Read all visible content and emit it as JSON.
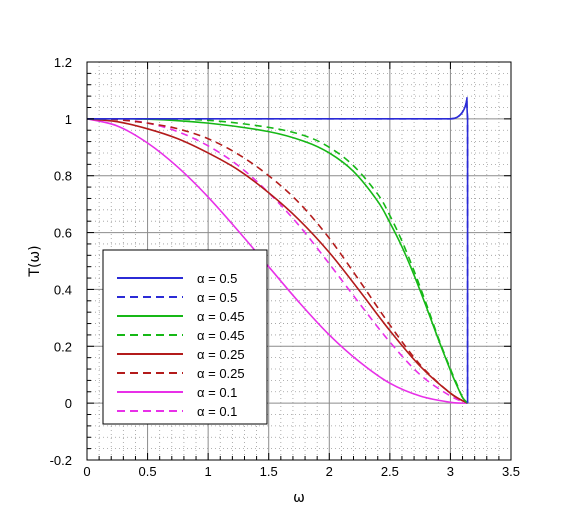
{
  "chart_data": {
    "type": "line",
    "title": "",
    "xlabel": "ω",
    "ylabel": "T(ω)",
    "xlim": [
      0,
      3.5
    ],
    "ylim": [
      -0.2,
      1.2
    ],
    "xticks": [
      "0",
      "0.5",
      "1",
      "1.5",
      "2",
      "2.5",
      "3",
      "3.5"
    ],
    "yticks": [
      "-0.2",
      "0",
      "0.2",
      "0.4",
      "0.6",
      "0.8",
      "1",
      "1.2"
    ],
    "grid": true,
    "minor_grid": true,
    "legend_position": "bottom-left",
    "series": [
      {
        "name": "α = 0.5",
        "color": "#2b2bd6",
        "dash": "solid",
        "x": [
          0,
          1,
          2,
          3,
          3.1416,
          3.1416
        ],
        "y": [
          1,
          1,
          1,
          1,
          1,
          0
        ]
      },
      {
        "name": "α = 0.5",
        "color": "#2b2bd6",
        "dash": "dashed",
        "x": [
          0,
          1,
          2,
          3,
          3.1416,
          3.1416
        ],
        "y": [
          1,
          1,
          1,
          1,
          1,
          0
        ]
      },
      {
        "name": "α = 0.45",
        "color": "#16b816",
        "dash": "solid",
        "x": [
          0,
          0.5,
          1,
          1.5,
          1.8,
          2.0,
          2.2,
          2.4,
          2.5,
          2.6,
          2.7,
          2.8,
          2.9,
          3.0,
          3.05,
          3.1,
          3.1416
        ],
        "y": [
          1,
          0.999,
          0.985,
          0.955,
          0.92,
          0.88,
          0.815,
          0.71,
          0.635,
          0.55,
          0.45,
          0.34,
          0.225,
          0.115,
          0.065,
          0.02,
          0
        ]
      },
      {
        "name": "α = 0.45",
        "color": "#16b816",
        "dash": "dashed",
        "x": [
          0,
          0.5,
          1,
          1.5,
          1.8,
          2.0,
          2.2,
          2.4,
          2.5,
          2.6,
          2.7,
          2.8,
          2.9,
          3.0,
          3.05,
          3.1,
          3.1416
        ],
        "y": [
          1,
          1,
          0.995,
          0.97,
          0.94,
          0.9,
          0.835,
          0.735,
          0.66,
          0.57,
          0.465,
          0.35,
          0.23,
          0.12,
          0.07,
          0.02,
          0
        ]
      },
      {
        "name": "α = 0.25",
        "color": "#b31b1b",
        "dash": "solid",
        "x": [
          0,
          0.25,
          0.5,
          0.75,
          1.0,
          1.25,
          1.5,
          1.75,
          2.0,
          2.25,
          2.5,
          2.75,
          3.0,
          3.1416
        ],
        "y": [
          1,
          0.99,
          0.965,
          0.93,
          0.88,
          0.82,
          0.74,
          0.645,
          0.53,
          0.395,
          0.255,
          0.13,
          0.035,
          0
        ]
      },
      {
        "name": "α = 0.25",
        "color": "#b31b1b",
        "dash": "dashed",
        "x": [
          0,
          0.25,
          0.5,
          0.75,
          1.0,
          1.25,
          1.5,
          1.75,
          2.0,
          2.25,
          2.5,
          2.75,
          3.0,
          3.1416
        ],
        "y": [
          1,
          0.997,
          0.985,
          0.965,
          0.93,
          0.875,
          0.8,
          0.705,
          0.58,
          0.43,
          0.275,
          0.135,
          0.035,
          0
        ]
      },
      {
        "name": "α = 0.1",
        "color": "#e830e8",
        "dash": "solid",
        "x": [
          0,
          0.25,
          0.5,
          0.75,
          1.0,
          1.25,
          1.5,
          1.75,
          2.0,
          2.25,
          2.5,
          2.75,
          3.0,
          3.1416
        ],
        "y": [
          1,
          0.975,
          0.915,
          0.83,
          0.725,
          0.605,
          0.48,
          0.355,
          0.24,
          0.145,
          0.07,
          0.025,
          0.003,
          0
        ]
      },
      {
        "name": "α = 0.1",
        "color": "#e830e8",
        "dash": "dashed",
        "x": [
          0,
          0.25,
          0.5,
          0.75,
          1.0,
          1.25,
          1.5,
          1.75,
          2.0,
          2.25,
          2.5,
          2.75,
          3.0,
          3.1416
        ],
        "y": [
          1,
          0.998,
          0.985,
          0.955,
          0.905,
          0.835,
          0.74,
          0.625,
          0.49,
          0.35,
          0.215,
          0.1,
          0.025,
          0
        ]
      }
    ]
  }
}
